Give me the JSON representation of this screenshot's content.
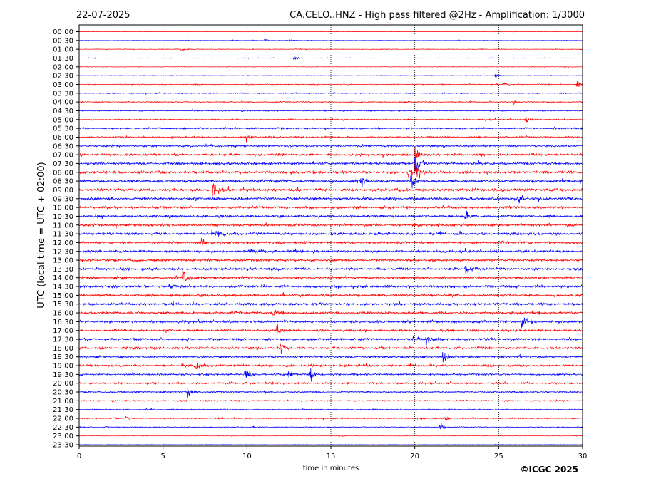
{
  "header": {
    "date": "22-07-2025",
    "station_title": "CA.CELO..HNZ - High pass filtered @2Hz - Amplification: 1/3000"
  },
  "footer": {
    "copyright": "©ICGC 2025"
  },
  "colors": {
    "series_a": "#ff0000",
    "series_b": "#0000ff",
    "gridline": "#000000"
  },
  "chart_data": {
    "type": "line",
    "title": "CA.CELO..HNZ - High pass filtered @2Hz - Amplification: 1/3000",
    "xlabel": "time in minutes",
    "ylabel": "UTC (local time = UTC + 02:00)",
    "xlim": [
      0,
      30
    ],
    "x_ticks": [
      "0",
      "5",
      "10",
      "15",
      "20",
      "25",
      "30"
    ],
    "vertical_grid_at": [
      5,
      10,
      15,
      20,
      25
    ],
    "grid": "vertical dotted",
    "rows": [
      "00:00",
      "00:30",
      "01:00",
      "01:30",
      "02:00",
      "02:30",
      "03:00",
      "03:30",
      "04:00",
      "04:30",
      "05:00",
      "05:30",
      "06:00",
      "06:30",
      "07:00",
      "07:30",
      "08:00",
      "08:30",
      "09:00",
      "09:30",
      "10:00",
      "10:30",
      "11:00",
      "11:30",
      "12:00",
      "12:30",
      "13:00",
      "13:30",
      "14:00",
      "14:30",
      "15:00",
      "15:30",
      "16:00",
      "16:30",
      "17:00",
      "17:30",
      "18:00",
      "18:30",
      "19:00",
      "19:30",
      "20:00",
      "20:30",
      "21:00",
      "21:30",
      "22:00",
      "22:30",
      "23:00",
      "23:30"
    ],
    "row_colors": "alternating blue / red",
    "noise_level": [
      0.4,
      0.5,
      0.6,
      0.5,
      0.5,
      0.4,
      0.8,
      0.9,
      1.0,
      1.0,
      1.1,
      1.5,
      1.6,
      1.8,
      2.2,
      2.4,
      2.5,
      2.6,
      2.6,
      2.6,
      2.4,
      2.4,
      2.4,
      2.4,
      2.3,
      2.3,
      2.3,
      2.3,
      2.3,
      2.4,
      2.3,
      2.3,
      2.3,
      2.3,
      2.2,
      2.2,
      2.2,
      2.0,
      2.0,
      1.8,
      1.7,
      1.5,
      1.2,
      1.0,
      1.1,
      0.9,
      0.4,
      0.4
    ],
    "events": [
      {
        "row": "00:30",
        "minute": 11.0,
        "amplitude": 4
      },
      {
        "row": "00:30",
        "minute": 12.5,
        "amplitude": 3
      },
      {
        "row": "01:00",
        "minute": 6.1,
        "amplitude": 4
      },
      {
        "row": "01:30",
        "minute": 12.8,
        "amplitude": 4
      },
      {
        "row": "02:30",
        "minute": 24.8,
        "amplitude": 3
      },
      {
        "row": "03:00",
        "minute": 25.3,
        "amplitude": 5
      },
      {
        "row": "03:00",
        "minute": 29.7,
        "amplitude": 6
      },
      {
        "row": "04:00",
        "minute": 25.9,
        "amplitude": 5
      },
      {
        "row": "05:00",
        "minute": 26.6,
        "amplitude": 6
      },
      {
        "row": "06:00",
        "minute": 10.0,
        "amplitude": 7
      },
      {
        "row": "07:00",
        "minute": 20.0,
        "amplitude": 14
      },
      {
        "row": "07:30",
        "minute": 20.0,
        "amplitude": 30
      },
      {
        "row": "08:00",
        "minute": 20.0,
        "amplitude": 26
      },
      {
        "row": "08:00",
        "minute": 19.6,
        "amplitude": 18
      },
      {
        "row": "08:30",
        "minute": 16.8,
        "amplitude": 12
      },
      {
        "row": "08:30",
        "minute": 19.8,
        "amplitude": 14
      },
      {
        "row": "09:00",
        "minute": 8.0,
        "amplitude": 12
      },
      {
        "row": "09:30",
        "minute": 26.2,
        "amplitude": 8
      },
      {
        "row": "10:30",
        "minute": 23.0,
        "amplitude": 10
      },
      {
        "row": "11:30",
        "minute": 8.2,
        "amplitude": 9
      },
      {
        "row": "12:00",
        "minute": 7.3,
        "amplitude": 8
      },
      {
        "row": "12:30",
        "minute": 10.2,
        "amplitude": 8
      },
      {
        "row": "13:30",
        "minute": 23.0,
        "amplitude": 16
      },
      {
        "row": "14:00",
        "minute": 6.2,
        "amplitude": 14
      },
      {
        "row": "14:30",
        "minute": 5.4,
        "amplitude": 10
      },
      {
        "row": "16:00",
        "minute": 11.6,
        "amplitude": 10
      },
      {
        "row": "16:30",
        "minute": 26.4,
        "amplitude": 12
      },
      {
        "row": "17:00",
        "minute": 11.8,
        "amplitude": 9
      },
      {
        "row": "17:30",
        "minute": 20.7,
        "amplitude": 10
      },
      {
        "row": "18:00",
        "minute": 12.0,
        "amplitude": 10
      },
      {
        "row": "18:30",
        "minute": 21.7,
        "amplitude": 12
      },
      {
        "row": "19:00",
        "minute": 7.0,
        "amplitude": 14
      },
      {
        "row": "19:30",
        "minute": 9.9,
        "amplitude": 12
      },
      {
        "row": "19:30",
        "minute": 12.5,
        "amplitude": 10
      },
      {
        "row": "19:30",
        "minute": 13.8,
        "amplitude": 12
      },
      {
        "row": "20:30",
        "minute": 6.5,
        "amplitude": 8
      },
      {
        "row": "22:00",
        "minute": 2.8,
        "amplitude": 6
      },
      {
        "row": "22:00",
        "minute": 21.8,
        "amplitude": 6
      },
      {
        "row": "22:30",
        "minute": 21.5,
        "amplitude": 9
      },
      {
        "row": "23:00",
        "minute": 15.5,
        "amplitude": 3
      }
    ]
  }
}
